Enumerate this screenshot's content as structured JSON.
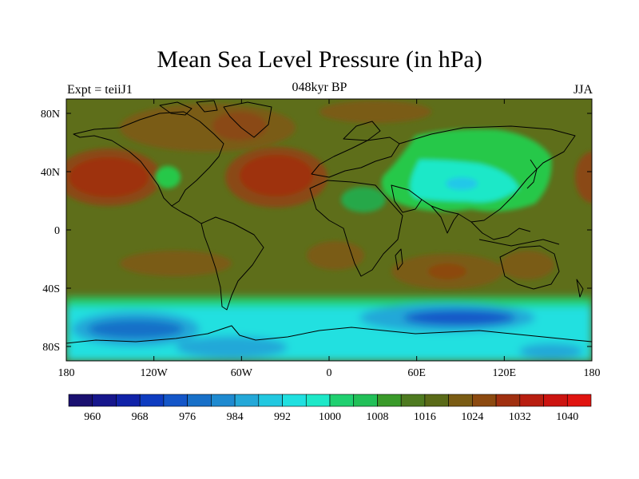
{
  "title": "Mean Sea Level Pressure (in hPa)",
  "subtitle": "048kyr BP",
  "left_label": "Expt = teiiJ1",
  "right_label": "JJA",
  "lat_ticks": [
    "80N",
    "40N",
    "0",
    "40S",
    "80S"
  ],
  "lon_ticks": [
    "180",
    "120W",
    "60W",
    "0",
    "60E",
    "120E",
    "180"
  ],
  "colorbar": {
    "labels": [
      "960",
      "968",
      "976",
      "984",
      "992",
      "1000",
      "1008",
      "1016",
      "1024",
      "1032",
      "1040"
    ],
    "levels": [
      960,
      964,
      968,
      972,
      976,
      980,
      984,
      988,
      992,
      996,
      1000,
      1004,
      1008,
      1012,
      1016,
      1020,
      1024,
      1028,
      1032,
      1036,
      1040
    ],
    "colors": [
      "#1a1070",
      "#16168c",
      "#1022a8",
      "#0e3cc0",
      "#1456c8",
      "#1870c8",
      "#1e8ad0",
      "#24a8d8",
      "#22c8e0",
      "#20e0e0",
      "#1ee8c8",
      "#20d070",
      "#22c058",
      "#3a9a2a",
      "#4e7a20",
      "#5a6a18",
      "#7a5c14",
      "#8c4a10",
      "#a03010",
      "#b81e10",
      "#cc1410",
      "#e01410"
    ]
  },
  "colors": {
    "background_field": "#5e6e1a",
    "green_low": "#1ec858",
    "cyan_low": "#20e0e0",
    "blue_low": "#1060c0",
    "high": "#9a3c10",
    "coast": "#000000"
  }
}
